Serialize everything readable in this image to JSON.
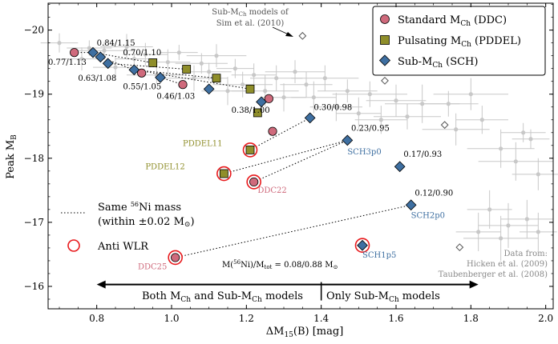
{
  "chart_data": {
    "type": "scatter",
    "xlabel": "ΔM₁₅(B) [mag]",
    "ylabel": "Peak M_B",
    "xlim": [
      0.67,
      2.02
    ],
    "ylim": [
      -15.65,
      -20.42
    ],
    "y_inverted": true,
    "x_ticks": [
      0.8,
      1.0,
      1.2,
      1.4,
      1.6,
      1.8,
      2.0
    ],
    "y_ticks": [
      -16,
      -17,
      -18,
      -19,
      -20
    ],
    "x_tick_labels": [
      "0.8",
      "1.0",
      "1.2",
      "1.4",
      "1.6",
      "1.8",
      "2.0"
    ],
    "y_tick_labels": [
      "−16",
      "−17",
      "−18",
      "−19",
      "−20"
    ],
    "legend": {
      "position": "top-right",
      "entries": [
        {
          "label": "Standard M_Ch (DDC)",
          "marker": "circle",
          "color": "#cf6a7c"
        },
        {
          "label": "Pulsating M_Ch (PDDEL)",
          "marker": "square",
          "color": "#8f8e2a"
        },
        {
          "label": "Sub-M_Ch (SCH)",
          "marker": "diamond",
          "color": "#3e6fa1"
        }
      ]
    },
    "colors": {
      "ddc": "#cf6a7c",
      "pddel": "#8f8e2a",
      "sch": "#3e6fa1",
      "anti": "#e8191c",
      "obs": "#c8c8c8",
      "obs_label": "#888888"
    },
    "series": [
      {
        "name": "Standard M_Ch (DDC)",
        "marker": "circle",
        "points": [
          {
            "x": 0.74,
            "y": -19.65
          },
          {
            "x": 0.92,
            "y": -19.33
          },
          {
            "x": 1.03,
            "y": -19.15
          },
          {
            "x": 1.26,
            "y": -18.93
          },
          {
            "x": 1.27,
            "y": -18.42
          },
          {
            "x": 1.22,
            "y": -17.63
          },
          {
            "x": 1.01,
            "y": -16.45
          }
        ]
      },
      {
        "name": "Pulsating M_Ch (PDDEL)",
        "marker": "square",
        "points": [
          {
            "x": 0.95,
            "y": -19.49
          },
          {
            "x": 1.04,
            "y": -19.39
          },
          {
            "x": 1.12,
            "y": -19.25
          },
          {
            "x": 1.21,
            "y": -19.08
          },
          {
            "x": 1.23,
            "y": -18.71
          },
          {
            "x": 1.21,
            "y": -18.13
          },
          {
            "x": 1.14,
            "y": -17.76
          }
        ]
      },
      {
        "name": "Sub-M_Ch (SCH)",
        "marker": "diamond",
        "points": [
          {
            "x": 0.79,
            "y": -19.65
          },
          {
            "x": 0.81,
            "y": -19.58
          },
          {
            "x": 0.83,
            "y": -19.48
          },
          {
            "x": 0.9,
            "y": -19.38
          },
          {
            "x": 0.97,
            "y": -19.26
          },
          {
            "x": 1.1,
            "y": -19.08
          },
          {
            "x": 1.24,
            "y": -18.88
          },
          {
            "x": 1.37,
            "y": -18.63
          },
          {
            "x": 1.47,
            "y": -18.28
          },
          {
            "x": 1.61,
            "y": -17.87
          },
          {
            "x": 1.64,
            "y": -17.27
          },
          {
            "x": 1.51,
            "y": -16.64
          }
        ]
      },
      {
        "name": "Sim et al. (2010)",
        "marker": "open-diamond",
        "points": [
          {
            "x": 1.35,
            "y": -19.91
          },
          {
            "x": 1.57,
            "y": -19.21
          },
          {
            "x": 1.73,
            "y": -18.52
          },
          {
            "x": 1.77,
            "y": -16.61
          }
        ]
      }
    ],
    "anti_wlr_points": [
      {
        "x": 1.21,
        "y": -18.13
      },
      {
        "x": 1.14,
        "y": -17.76
      },
      {
        "x": 1.22,
        "y": -17.63
      },
      {
        "x": 1.01,
        "y": -16.45
      },
      {
        "x": 1.51,
        "y": -16.64
      }
    ],
    "same_ni_mass_lines": [
      {
        "points": [
          {
            "x": 0.74,
            "y": -19.65
          },
          {
            "x": 0.79,
            "y": -19.65
          }
        ]
      },
      {
        "points": [
          {
            "x": 0.79,
            "y": -19.65
          },
          {
            "x": 0.95,
            "y": -19.49
          }
        ]
      },
      {
        "points": [
          {
            "x": 0.81,
            "y": -19.58
          },
          {
            "x": 0.92,
            "y": -19.33
          }
        ]
      },
      {
        "points": [
          {
            "x": 0.83,
            "y": -19.48
          },
          {
            "x": 1.04,
            "y": -19.39
          }
        ]
      },
      {
        "points": [
          {
            "x": 0.9,
            "y": -19.38
          },
          {
            "x": 1.12,
            "y": -19.25
          }
        ]
      },
      {
        "points": [
          {
            "x": 0.97,
            "y": -19.26
          },
          {
            "x": 1.03,
            "y": -19.15
          }
        ]
      },
      {
        "points": [
          {
            "x": 0.9,
            "y": -19.38
          },
          {
            "x": 1.21,
            "y": -19.08
          }
        ]
      },
      {
        "points": [
          {
            "x": 1.21,
            "y": -18.13
          },
          {
            "x": 1.37,
            "y": -18.63
          }
        ]
      },
      {
        "points": [
          {
            "x": 1.14,
            "y": -17.76
          },
          {
            "x": 1.47,
            "y": -18.28
          }
        ]
      },
      {
        "points": [
          {
            "x": 1.22,
            "y": -17.63
          },
          {
            "x": 1.47,
            "y": -18.28
          }
        ]
      },
      {
        "points": [
          {
            "x": 1.01,
            "y": -16.45
          },
          {
            "x": 1.64,
            "y": -17.27
          }
        ]
      }
    ],
    "annotations": [
      {
        "text": "0.84/1.15",
        "x": 0.8,
        "y": -19.76
      },
      {
        "text": "0.77/1.13",
        "x": 0.67,
        "y": -19.46
      },
      {
        "text": "0.70/1.10",
        "x": 0.87,
        "y": -19.61
      },
      {
        "text": "0.63/1.08",
        "x": 0.75,
        "y": -19.21
      },
      {
        "text": "0.55/1.05",
        "x": 0.87,
        "y": -19.08
      },
      {
        "text": "0.46/1.03",
        "x": 0.96,
        "y": -18.93
      },
      {
        "text": "0.38/1.00",
        "x": 1.16,
        "y": -18.71
      },
      {
        "text": "0.30/0.98",
        "x": 1.38,
        "y": -18.75
      },
      {
        "text": "0.23/0.95",
        "x": 1.48,
        "y": -18.43
      },
      {
        "text": "0.17/0.93",
        "x": 1.62,
        "y": -18.02
      },
      {
        "text": "0.12/0.90",
        "x": 1.65,
        "y": -17.42
      }
    ],
    "model_labels": [
      {
        "text": "PDDEL11",
        "x": 1.03,
        "y": -18.19,
        "color": "#8f8e2a"
      },
      {
        "text": "PDDEL12",
        "x": 0.93,
        "y": -17.83,
        "color": "#8f8e2a"
      },
      {
        "text": "DDC22",
        "x": 1.23,
        "y": -17.46,
        "color": "#cf6a7c"
      },
      {
        "text": "SCH3p0",
        "x": 1.47,
        "y": -18.06,
        "color": "#3e6fa1"
      },
      {
        "text": "SCH2p0",
        "x": 1.64,
        "y": -17.07,
        "color": "#3e6fa1"
      },
      {
        "text": "SCH1p5",
        "x": 1.51,
        "y": -16.45,
        "color": "#3e6fa1"
      },
      {
        "text": "DDC25",
        "x": 0.91,
        "y": -16.27,
        "color": "#cf6a7c"
      }
    ],
    "sim_label": {
      "line1": "Sub-M_Ch models of",
      "line2": "Sim et al. (2010)"
    },
    "inner_legend": {
      "dotted_line1": "Same ⁵⁶Ni mass",
      "dotted_line2": "(within ±0.02 M⊙)",
      "anti_wlr": "Anti WLR"
    },
    "ratio_label": "M(⁵⁶Ni)/M_tot = 0.08/0.88 M⊙",
    "region_labels": {
      "left": "Both M_Ch and Sub-M_Ch models",
      "right": "Only Sub-M_Ch models",
      "arrow_x_start": 0.8,
      "arrow_x_end": 1.82,
      "divider_x": 1.4,
      "arrow_y": -16.03
    },
    "data_source": {
      "line1": "Data from:",
      "line2": "Hicken et al. (2009)",
      "line3": "Taubenberger et al. (2008)"
    },
    "observed": [
      {
        "x": 0.7,
        "y": -19.8,
        "ex": 0.05,
        "ey": 0.15
      },
      {
        "x": 0.78,
        "y": -19.72,
        "ex": 0.06,
        "ey": 0.12
      },
      {
        "x": 0.76,
        "y": -19.55,
        "ex": 0.05,
        "ey": 0.18
      },
      {
        "x": 0.82,
        "y": -19.68,
        "ex": 0.08,
        "ey": 0.14
      },
      {
        "x": 0.85,
        "y": -19.42,
        "ex": 0.06,
        "ey": 0.16
      },
      {
        "x": 0.88,
        "y": -19.74,
        "ex": 0.07,
        "ey": 0.2
      },
      {
        "x": 0.9,
        "y": -19.55,
        "ex": 0.05,
        "ey": 0.14
      },
      {
        "x": 0.93,
        "y": -19.62,
        "ex": 0.06,
        "ey": 0.18
      },
      {
        "x": 0.96,
        "y": -19.3,
        "ex": 0.08,
        "ey": 0.15
      },
      {
        "x": 0.99,
        "y": -19.5,
        "ex": 0.06,
        "ey": 0.2
      },
      {
        "x": 1.02,
        "y": -19.65,
        "ex": 0.05,
        "ey": 0.12
      },
      {
        "x": 1.06,
        "y": -19.25,
        "ex": 0.09,
        "ey": 0.2
      },
      {
        "x": 1.08,
        "y": -19.48,
        "ex": 0.07,
        "ey": 0.16
      },
      {
        "x": 1.1,
        "y": -19.35,
        "ex": 0.06,
        "ey": 0.14
      },
      {
        "x": 1.12,
        "y": -19.6,
        "ex": 0.08,
        "ey": 0.18
      },
      {
        "x": 1.15,
        "y": -19.05,
        "ex": 0.07,
        "ey": 0.22
      },
      {
        "x": 1.17,
        "y": -19.4,
        "ex": 0.05,
        "ey": 0.15
      },
      {
        "x": 1.19,
        "y": -19.15,
        "ex": 0.08,
        "ey": 0.2
      },
      {
        "x": 1.22,
        "y": -19.3,
        "ex": 0.06,
        "ey": 0.18
      },
      {
        "x": 1.25,
        "y": -19.05,
        "ex": 0.09,
        "ey": 0.25
      },
      {
        "x": 1.28,
        "y": -19.25,
        "ex": 0.07,
        "ey": 0.2
      },
      {
        "x": 1.3,
        "y": -18.95,
        "ex": 0.06,
        "ey": 0.22
      },
      {
        "x": 1.33,
        "y": -19.35,
        "ex": 0.08,
        "ey": 0.18
      },
      {
        "x": 1.36,
        "y": -19.15,
        "ex": 0.07,
        "ey": 0.2
      },
      {
        "x": 1.38,
        "y": -18.95,
        "ex": 0.06,
        "ey": 0.25
      },
      {
        "x": 1.41,
        "y": -19.25,
        "ex": 0.09,
        "ey": 0.2
      },
      {
        "x": 1.44,
        "y": -18.8,
        "ex": 0.07,
        "ey": 0.22
      },
      {
        "x": 1.47,
        "y": -19.05,
        "ex": 0.08,
        "ey": 0.18
      },
      {
        "x": 1.5,
        "y": -18.7,
        "ex": 0.06,
        "ey": 0.25
      },
      {
        "x": 1.53,
        "y": -19.0,
        "ex": 0.1,
        "ey": 0.2
      },
      {
        "x": 1.56,
        "y": -18.6,
        "ex": 0.07,
        "ey": 0.22
      },
      {
        "x": 1.6,
        "y": -18.9,
        "ex": 0.08,
        "ey": 0.25
      },
      {
        "x": 1.63,
        "y": -18.65,
        "ex": 0.09,
        "ey": 0.2
      },
      {
        "x": 1.67,
        "y": -18.85,
        "ex": 0.1,
        "ey": 0.3
      },
      {
        "x": 1.7,
        "y": -19.45,
        "ex": 0.05,
        "ey": 0.1
      },
      {
        "x": 1.74,
        "y": -18.85,
        "ex": 0.08,
        "ey": 0.2
      },
      {
        "x": 1.76,
        "y": -18.45,
        "ex": 0.09,
        "ey": 0.25
      },
      {
        "x": 1.8,
        "y": -19.0,
        "ex": 0.1,
        "ey": 0.25
      },
      {
        "x": 1.83,
        "y": -18.6,
        "ex": 0.07,
        "ey": 0.22
      },
      {
        "x": 1.88,
        "y": -18.15,
        "ex": 0.09,
        "ey": 0.3
      },
      {
        "x": 1.92,
        "y": -17.95,
        "ex": 0.1,
        "ey": 0.3
      },
      {
        "x": 1.94,
        "y": -18.4,
        "ex": 0.06,
        "ey": 0.15
      },
      {
        "x": 1.96,
        "y": -18.3,
        "ex": 0.05,
        "ey": 0.15
      },
      {
        "x": 1.98,
        "y": -17.75,
        "ex": 0.07,
        "ey": 0.25
      },
      {
        "x": 1.85,
        "y": -17.2,
        "ex": 0.06,
        "ey": 0.3
      },
      {
        "x": 1.9,
        "y": -16.95,
        "ex": 0.08,
        "ey": 0.35
      },
      {
        "x": 1.95,
        "y": -17.05,
        "ex": 0.07,
        "ey": 0.3
      },
      {
        "x": 1.98,
        "y": -16.85,
        "ex": 0.05,
        "ey": 0.3
      },
      {
        "x": 1.82,
        "y": -16.85,
        "ex": 0.06,
        "ey": 0.3
      },
      {
        "x": 1.88,
        "y": -16.75,
        "ex": 0.1,
        "ey": 0.35
      }
    ]
  }
}
